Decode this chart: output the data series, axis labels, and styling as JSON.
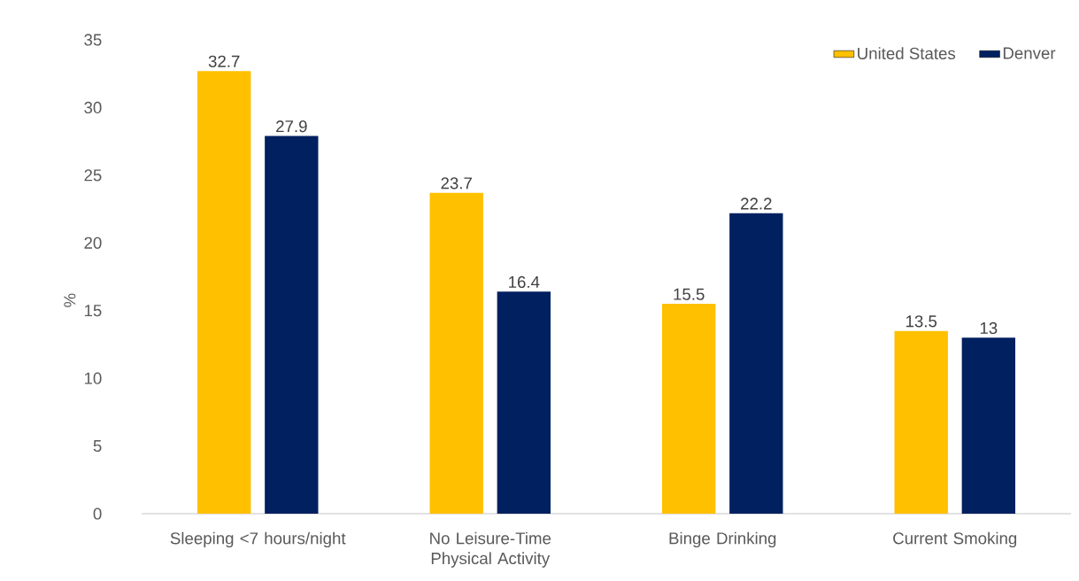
{
  "chart_data": {
    "type": "bar",
    "ylabel": "%",
    "categories": [
      "Sleeping <7 hours/night",
      "No Leisure-Time Physical Activity",
      "Binge Drinking",
      "Current Smoking"
    ],
    "series": [
      {
        "name": "United States",
        "color": "#ffc000",
        "values": [
          32.7,
          23.7,
          15.5,
          13.5
        ]
      },
      {
        "name": "Denver",
        "color": "#002060",
        "values": [
          27.9,
          16.4,
          22.2,
          13
        ]
      }
    ],
    "ylim": [
      0,
      35
    ],
    "yticks": [
      0,
      5,
      10,
      15,
      20,
      25,
      30,
      35
    ],
    "data_labels": true,
    "legend": "top right"
  }
}
